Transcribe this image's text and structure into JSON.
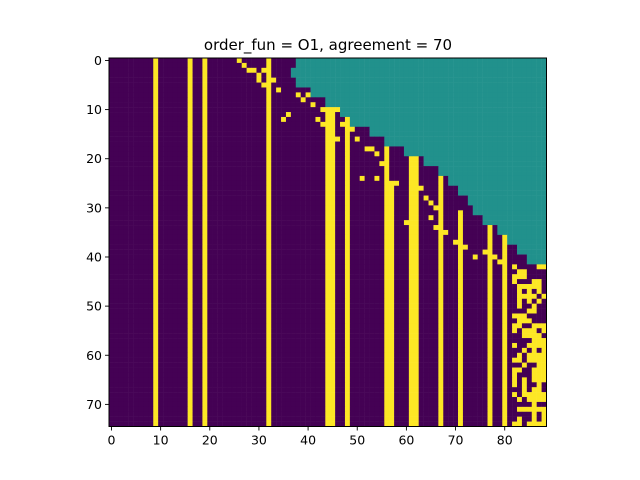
{
  "chart_data": {
    "type": "heatmap",
    "title": "order_fun = O1, agreement = 70",
    "xlabel": "",
    "ylabel": "",
    "n_rows": 75,
    "n_cols": 89,
    "xlim": [
      -0.5,
      88.5
    ],
    "ylim": [
      74.5,
      -0.5
    ],
    "x_ticks": [
      0,
      10,
      20,
      30,
      40,
      50,
      60,
      70,
      80
    ],
    "y_ticks": [
      0,
      10,
      20,
      30,
      40,
      50,
      60,
      70
    ],
    "colormap": "viridis",
    "colors": {
      "low": "#440154",
      "mid": "#21918c",
      "high": "#fde725"
    },
    "legend": "none",
    "grid": false,
    "upper_right_region": {
      "value": "mid",
      "boundary_start_col_by_row": [
        [
          0,
          38
        ],
        [
          2,
          37
        ],
        [
          4,
          38
        ],
        [
          6,
          41
        ],
        [
          8,
          44
        ],
        [
          10,
          47
        ],
        [
          12,
          49
        ],
        [
          14,
          53
        ],
        [
          16,
          56
        ],
        [
          18,
          60
        ],
        [
          20,
          64
        ],
        [
          22,
          67
        ],
        [
          24,
          69
        ],
        [
          26,
          71
        ],
        [
          28,
          73
        ],
        [
          30,
          74
        ],
        [
          32,
          76
        ],
        [
          34,
          79
        ],
        [
          36,
          81
        ],
        [
          38,
          83
        ],
        [
          40,
          85
        ],
        [
          42,
          89
        ]
      ]
    },
    "full_height_yellow_columns": [
      9,
      16,
      19,
      32,
      44,
      45,
      48,
      56,
      61,
      62,
      67
    ],
    "yellow_columns_from_row": [
      [
        57,
        25
      ],
      [
        71,
        31
      ],
      [
        77,
        33
      ],
      [
        80,
        36
      ]
    ],
    "dense_yellow_block": {
      "cols": [
        82,
        88
      ],
      "rows": [
        42,
        74
      ]
    },
    "scattered_yellow_cells": [
      [
        26,
        0
      ],
      [
        27,
        1
      ],
      [
        28,
        2
      ],
      [
        29,
        2
      ],
      [
        30,
        3
      ],
      [
        31,
        2
      ],
      [
        30,
        4
      ],
      [
        33,
        4
      ],
      [
        31,
        5
      ],
      [
        34,
        6
      ],
      [
        38,
        7
      ],
      [
        40,
        7
      ],
      [
        39,
        8
      ],
      [
        41,
        9
      ],
      [
        43,
        10
      ],
      [
        46,
        10
      ],
      [
        36,
        11
      ],
      [
        35,
        12
      ],
      [
        42,
        12
      ],
      [
        43,
        13
      ],
      [
        47,
        13
      ],
      [
        49,
        14
      ],
      [
        46,
        16
      ],
      [
        50,
        16
      ],
      [
        52,
        18
      ],
      [
        53,
        18
      ],
      [
        54,
        19
      ],
      [
        55,
        21
      ],
      [
        51,
        24
      ],
      [
        54,
        24
      ],
      [
        58,
        25
      ],
      [
        63,
        26
      ],
      [
        64,
        28
      ],
      [
        65,
        29
      ],
      [
        66,
        30
      ],
      [
        62,
        31
      ],
      [
        61,
        32
      ],
      [
        60,
        33
      ],
      [
        65,
        32
      ],
      [
        66,
        34
      ],
      [
        68,
        35
      ],
      [
        70,
        37
      ],
      [
        72,
        38
      ],
      [
        74,
        40
      ],
      [
        76,
        39
      ],
      [
        78,
        40
      ],
      [
        79,
        41
      ]
    ]
  }
}
